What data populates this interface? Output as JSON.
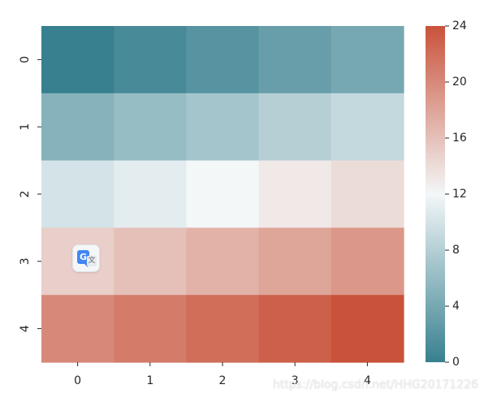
{
  "chart_data": {
    "type": "heatmap",
    "x_labels": [
      "0",
      "1",
      "2",
      "3",
      "4"
    ],
    "y_labels": [
      "0",
      "1",
      "2",
      "3",
      "4"
    ],
    "values": [
      [
        0,
        1,
        2,
        3,
        4
      ],
      [
        5,
        6,
        7,
        8,
        9
      ],
      [
        10,
        11,
        12,
        13,
        14
      ],
      [
        15,
        16,
        17,
        18,
        19
      ],
      [
        20,
        21,
        22,
        23,
        24
      ]
    ],
    "colorbar": {
      "min": 0,
      "max": 24,
      "ticks": [
        "0",
        "4",
        "8",
        "12",
        "16",
        "20",
        "24"
      ]
    },
    "colormap": [
      "#38808f",
      "#f3f7f8",
      "#c9523a"
    ],
    "center_value": 12
  },
  "overlay": {
    "icon": "google-translate-icon",
    "g_text": "G",
    "wen_text": "文"
  },
  "watermark": {
    "text": "https://blog.csdn.net/HHG20171226"
  }
}
